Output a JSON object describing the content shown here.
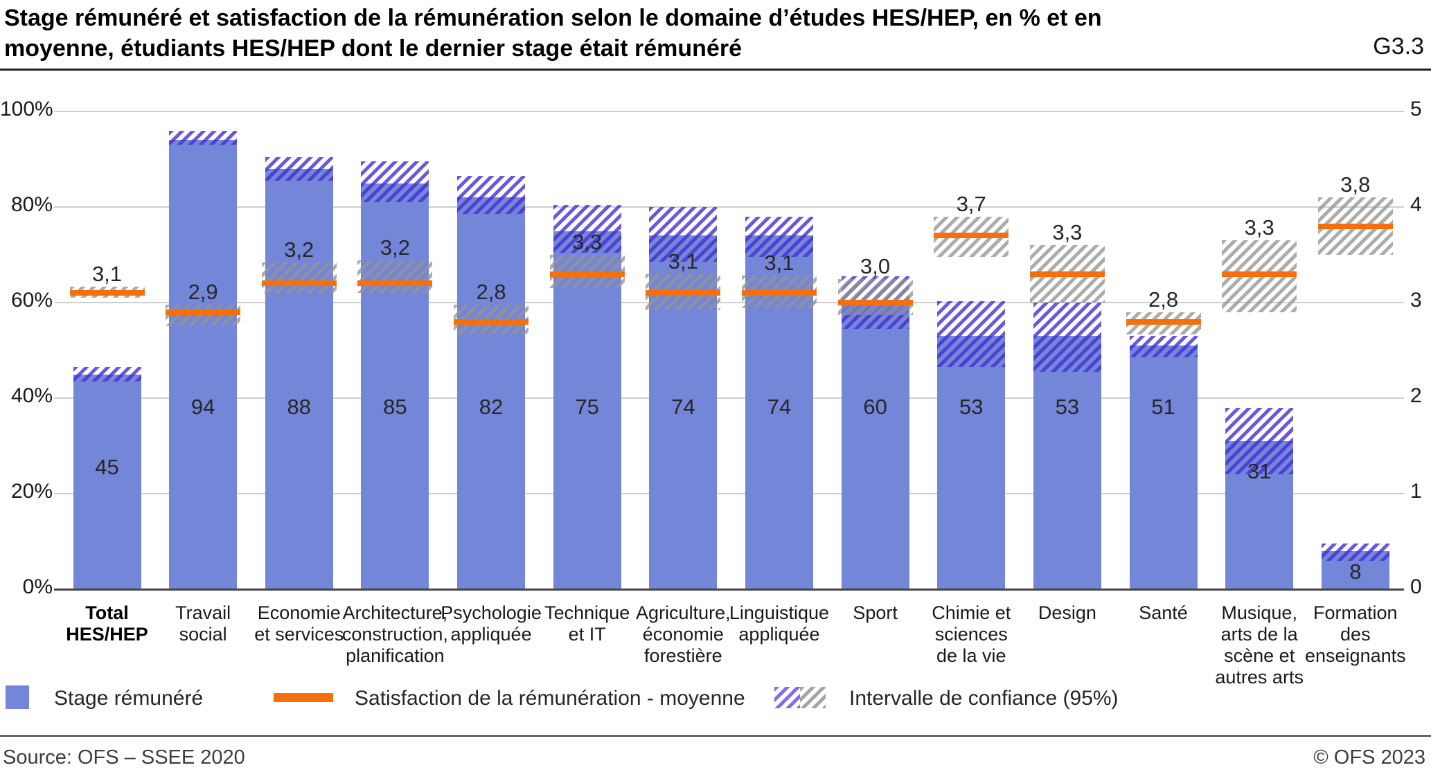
{
  "header": {
    "title": "Stage rémunéré et satisfaction de la rémunération selon le domaine d’études HES/HEP, en % et en moyenne, étudiants HES/HEP dont le dernier stage était rémunéré",
    "code": "G3.3"
  },
  "chart_data": {
    "type": "bar",
    "title": "Stage rémunéré et satisfaction de la rémunération selon le domaine d’études HES/HEP",
    "grid": "horizontal",
    "legend_position": "bottom",
    "left_axis": {
      "unit": "%",
      "range": [
        0,
        100
      ],
      "ticks_top_to_bottom": [
        "100%",
        "80%",
        "60%",
        "40%",
        "20%",
        "0%"
      ]
    },
    "right_axis": {
      "unit": "moyenne (0–5)",
      "range": [
        0,
        5
      ],
      "ticks_top_to_bottom": [
        "5",
        "4",
        "3",
        "2",
        "1",
        "0"
      ]
    },
    "series": [
      {
        "name": "Stage rémunéré",
        "unit": "%"
      },
      {
        "name": "Satisfaction de la rémunération - moyenne",
        "unit": "moyenne"
      },
      {
        "name": "Intervalle de confiance (95%)",
        "unit": ""
      }
    ],
    "categories": [
      {
        "name": "Total HES/HEP",
        "display": "Total\nHES/HEP",
        "bold": true,
        "paid_pct": 45,
        "paid_ci95": [
          43.5,
          46.5
        ],
        "satisfaction_mean": 3.1,
        "satisfaction_label": "3,1",
        "satisfaction_ci95": [
          3.05,
          3.17
        ]
      },
      {
        "name": "Travail social",
        "display": "Travail\nsocial",
        "bold": false,
        "paid_pct": 94,
        "paid_ci95": [
          93,
          96
        ],
        "satisfaction_mean": 2.9,
        "satisfaction_label": "2,9",
        "satisfaction_ci95": [
          2.75,
          2.98
        ]
      },
      {
        "name": "Economie et services",
        "display": "Economie\net services",
        "bold": false,
        "paid_pct": 88,
        "paid_ci95": [
          85.5,
          90.5
        ],
        "satisfaction_mean": 3.2,
        "satisfaction_label": "3,2",
        "satisfaction_ci95": [
          3.1,
          3.42
        ]
      },
      {
        "name": "Architecture, construction, planification",
        "display": "Architecture,\nconstruction,\nplanification",
        "bold": false,
        "paid_pct": 85,
        "paid_ci95": [
          81,
          89.5
        ],
        "satisfaction_mean": 3.2,
        "satisfaction_label": "3,2",
        "satisfaction_ci95": [
          3.1,
          3.44
        ]
      },
      {
        "name": "Psychologie appliquée",
        "display": "Psychologie\nappliquée",
        "bold": false,
        "paid_pct": 82,
        "paid_ci95": [
          78.5,
          86.5
        ],
        "satisfaction_mean": 2.8,
        "satisfaction_label": "2,8",
        "satisfaction_ci95": [
          2.67,
          2.98
        ]
      },
      {
        "name": "Technique et IT",
        "display": "Technique\net IT",
        "bold": false,
        "paid_pct": 75,
        "paid_ci95": [
          70.5,
          80.5
        ],
        "satisfaction_mean": 3.3,
        "satisfaction_label": "3,3",
        "satisfaction_ci95": [
          3.15,
          3.5
        ]
      },
      {
        "name": "Agriculture, économie forestière",
        "display": "Agriculture,\néconomie\nforestière",
        "bold": false,
        "paid_pct": 74,
        "paid_ci95": [
          68.5,
          80
        ],
        "satisfaction_mean": 3.1,
        "satisfaction_label": "3,1",
        "satisfaction_ci95": [
          2.92,
          3.3
        ]
      },
      {
        "name": "Linguistique appliquée",
        "display": "Linguistique\nappliquée",
        "bold": false,
        "paid_pct": 74,
        "paid_ci95": [
          69.5,
          78
        ],
        "satisfaction_mean": 3.1,
        "satisfaction_label": "3,1",
        "satisfaction_ci95": [
          2.94,
          3.28
        ]
      },
      {
        "name": "Sport",
        "display": "Sport",
        "bold": false,
        "paid_pct": 60,
        "paid_ci95": [
          54.5,
          65.5
        ],
        "satisfaction_mean": 3.0,
        "satisfaction_label": "3,0",
        "satisfaction_ci95": [
          2.87,
          3.25
        ]
      },
      {
        "name": "Chimie et sciences de la vie",
        "display": "Chimie et\nsciences\nde la vie",
        "bold": false,
        "paid_pct": 53,
        "paid_ci95": [
          46.5,
          60.3
        ],
        "satisfaction_mean": 3.7,
        "satisfaction_label": "3,7",
        "satisfaction_ci95": [
          3.48,
          3.9
        ]
      },
      {
        "name": "Design",
        "display": "Design",
        "bold": false,
        "paid_pct": 53,
        "paid_ci95": [
          45.5,
          60
        ],
        "satisfaction_mean": 3.3,
        "satisfaction_label": "3,3",
        "satisfaction_ci95": [
          3.0,
          3.6
        ]
      },
      {
        "name": "Santé",
        "display": "Santé",
        "bold": false,
        "paid_pct": 51,
        "paid_ci95": [
          48.5,
          53
        ],
        "satisfaction_mean": 2.8,
        "satisfaction_label": "2,8",
        "satisfaction_ci95": [
          2.67,
          2.9
        ]
      },
      {
        "name": "Musique, arts de la scène et autres arts",
        "display": "Musique,\narts de la\nscène et\nautres arts",
        "bold": false,
        "paid_pct": 31,
        "paid_ci95": [
          24,
          38
        ],
        "satisfaction_mean": 3.3,
        "satisfaction_label": "3,3",
        "satisfaction_ci95": [
          2.9,
          3.65
        ]
      },
      {
        "name": "Formation des enseignants",
        "display": "Formation\ndes\nenseignants",
        "bold": false,
        "paid_pct": 8,
        "paid_ci95": [
          6,
          9.5
        ],
        "satisfaction_mean": 3.8,
        "satisfaction_label": "3,8",
        "satisfaction_ci95": [
          3.5,
          4.1
        ]
      }
    ]
  },
  "legend": {
    "paid": "Stage rémunéré",
    "satisfaction": "Satisfaction de la rémunération - moyenne",
    "confidence": "Intervalle de confiance (95%)"
  },
  "footer": {
    "source": "Source: OFS – SSEE 2020",
    "copyright": "© OFS 2023"
  },
  "colors": {
    "bar_blue": "#7486d8",
    "satisfaction_orange": "#F56F0D",
    "ci_purple_stripe": "#4230d4",
    "ci_gray_stripe": "#b5b5b5",
    "gridline": "#cecece",
    "axis_baseline": "#454545"
  }
}
